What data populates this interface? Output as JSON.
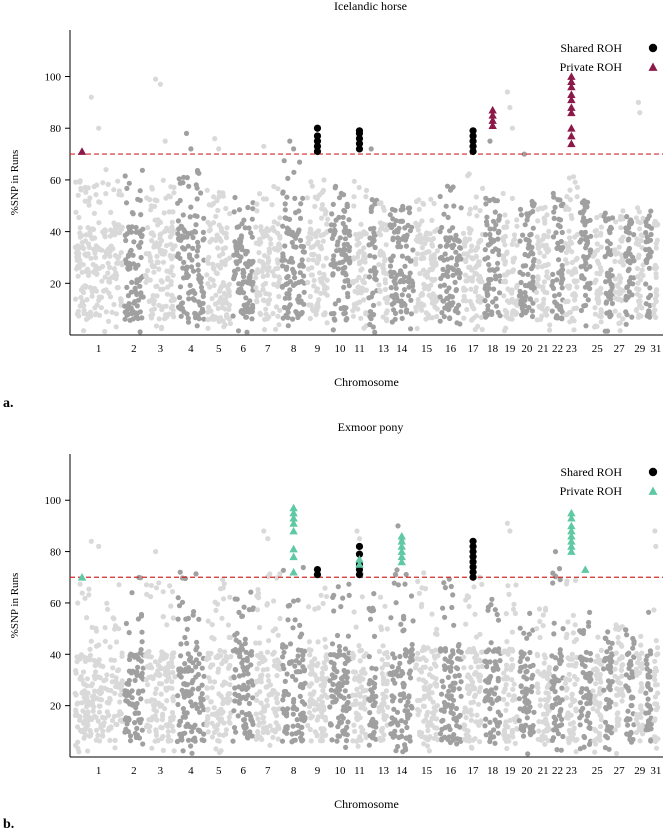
{
  "chart_data": [
    {
      "type": "scatter",
      "subtype": "manhattan",
      "panel_label": "a.",
      "title": "Icelandic horse",
      "xlabel": "Chromosome",
      "ylabel": "%SNP in Runs",
      "ylim": [
        0,
        118
      ],
      "yticks": [
        20,
        40,
        60,
        80,
        100
      ],
      "threshold": 70,
      "chromosomes": [
        "1",
        "2",
        "3",
        "4",
        "5",
        "6",
        "7",
        "8",
        "9",
        "10",
        "11",
        "12",
        "13",
        "14",
        "15",
        "16",
        "17",
        "18",
        "19",
        "20",
        "21",
        "22",
        "23",
        "24",
        "25",
        "26",
        "27",
        "28",
        "29",
        "30",
        "31"
      ],
      "xtick_labels": [
        "1",
        "2",
        "3",
        "4",
        "5",
        "6",
        "7",
        "8",
        "9",
        "10",
        "11",
        "13",
        "14",
        "15",
        "16",
        "17",
        "18",
        "19",
        "20",
        "21",
        "22",
        "23",
        "25",
        "27",
        "29",
        "31"
      ],
      "colors": {
        "light": "#d9d9d9",
        "dark": "#a0a0a0",
        "threshold": "#d62728",
        "shared": "#000000",
        "private": "#8b1a4b"
      },
      "typical_max": [
        62,
        66,
        62,
        66,
        58,
        58,
        60,
        70,
        62,
        60,
        62,
        56,
        54,
        52,
        56,
        60,
        66,
        56,
        60,
        54,
        52,
        58,
        64,
        54,
        56,
        52,
        50,
        48,
        52,
        50,
        46
      ],
      "legend": {
        "position": "top-right",
        "entries": [
          {
            "label": "Shared ROH",
            "marker": "circle",
            "color": "#000000"
          },
          {
            "label": "Private ROH",
            "marker": "triangle",
            "color": "#8b1a4b"
          }
        ]
      },
      "outliers": [
        {
          "chr": "1",
          "values": [
            92,
            80,
            64
          ]
        },
        {
          "chr": "3",
          "values": [
            99,
            97,
            75
          ]
        },
        {
          "chr": "4",
          "values": [
            78,
            72
          ]
        },
        {
          "chr": "5",
          "values": [
            76,
            72
          ]
        },
        {
          "chr": "7",
          "values": [
            73
          ]
        },
        {
          "chr": "8",
          "values": [
            75,
            72
          ]
        },
        {
          "chr": "12",
          "values": [
            72
          ]
        },
        {
          "chr": "18",
          "values": [
            75
          ]
        },
        {
          "chr": "19",
          "values": [
            94,
            88,
            80
          ]
        },
        {
          "chr": "20",
          "values": [
            70
          ]
        },
        {
          "chr": "29",
          "values": [
            90,
            86
          ]
        }
      ],
      "highlights": [
        {
          "chr": "1",
          "kind": "private",
          "values": [
            71
          ]
        },
        {
          "chr": "9",
          "kind": "shared",
          "values": [
            71,
            73,
            75,
            77,
            80
          ]
        },
        {
          "chr": "11",
          "kind": "shared",
          "values": [
            72,
            74,
            76,
            78,
            79
          ]
        },
        {
          "chr": "17",
          "kind": "shared",
          "values": [
            71,
            73,
            75,
            77,
            79
          ]
        },
        {
          "chr": "18",
          "kind": "private",
          "values": [
            81,
            83,
            85,
            87
          ]
        },
        {
          "chr": "23",
          "kind": "private",
          "values": [
            74,
            77,
            80,
            86,
            88,
            91,
            93,
            96,
            98,
            100
          ]
        }
      ]
    },
    {
      "type": "scatter",
      "subtype": "manhattan",
      "panel_label": "b.",
      "title": "Exmoor pony",
      "xlabel": "Chromosome",
      "ylabel": "%SNP in Runs",
      "ylim": [
        0,
        118
      ],
      "yticks": [
        20,
        40,
        60,
        80,
        100
      ],
      "threshold": 70,
      "chromosomes": [
        "1",
        "2",
        "3",
        "4",
        "5",
        "6",
        "7",
        "8",
        "9",
        "10",
        "11",
        "12",
        "13",
        "14",
        "15",
        "16",
        "17",
        "18",
        "19",
        "20",
        "21",
        "22",
        "23",
        "24",
        "25",
        "26",
        "27",
        "28",
        "29",
        "30",
        "31"
      ],
      "xtick_labels": [
        "1",
        "2",
        "3",
        "4",
        "5",
        "6",
        "7",
        "8",
        "9",
        "10",
        "11",
        "13",
        "14",
        "15",
        "16",
        "17",
        "18",
        "19",
        "20",
        "21",
        "22",
        "23",
        "25",
        "27",
        "29",
        "31"
      ],
      "colors": {
        "light": "#d9d9d9",
        "dark": "#a0a0a0",
        "threshold": "#d62728",
        "shared": "#000000",
        "private": "#5fc9a3"
      },
      "typical_max": [
        70,
        72,
        72,
        76,
        72,
        70,
        74,
        76,
        72,
        70,
        74,
        70,
        70,
        76,
        74,
        72,
        76,
        74,
        72,
        62,
        60,
        76,
        72,
        60,
        58,
        56,
        54,
        52,
        50,
        62,
        60
      ],
      "legend": {
        "position": "top-right",
        "entries": [
          {
            "label": "Shared ROH",
            "marker": "circle",
            "color": "#000000"
          },
          {
            "label": "Private ROH",
            "marker": "triangle",
            "color": "#5fc9a3"
          }
        ]
      },
      "outliers": [
        {
          "chr": "1",
          "values": [
            84,
            82
          ]
        },
        {
          "chr": "3",
          "values": [
            80
          ]
        },
        {
          "chr": "7",
          "values": [
            88,
            85
          ]
        },
        {
          "chr": "11",
          "values": [
            88,
            85
          ]
        },
        {
          "chr": "14",
          "values": [
            90,
            84
          ]
        },
        {
          "chr": "19",
          "values": [
            91,
            88
          ]
        },
        {
          "chr": "22",
          "values": [
            80
          ]
        },
        {
          "chr": "31",
          "values": [
            88,
            82
          ]
        }
      ],
      "highlights": [
        {
          "chr": "1",
          "kind": "private",
          "values": [
            70
          ]
        },
        {
          "chr": "8",
          "kind": "private",
          "values": [
            72,
            78,
            81,
            88,
            91,
            93,
            95,
            97
          ]
        },
        {
          "chr": "9",
          "kind": "shared",
          "values": [
            71,
            73
          ]
        },
        {
          "chr": "11",
          "kind": "shared",
          "values": [
            71,
            73,
            75,
            79,
            82
          ]
        },
        {
          "chr": "11",
          "kind": "private",
          "values": [
            75,
            77
          ]
        },
        {
          "chr": "14",
          "kind": "private",
          "values": [
            76,
            78,
            80,
            82,
            84,
            86
          ]
        },
        {
          "chr": "17",
          "kind": "shared",
          "values": [
            70,
            72,
            74,
            76,
            78,
            80,
            82,
            84
          ]
        },
        {
          "chr": "23",
          "kind": "private",
          "values": [
            80,
            82,
            84,
            86,
            88,
            90,
            93,
            95
          ]
        },
        {
          "chr": "24",
          "kind": "private",
          "values": [
            73
          ]
        }
      ]
    }
  ]
}
